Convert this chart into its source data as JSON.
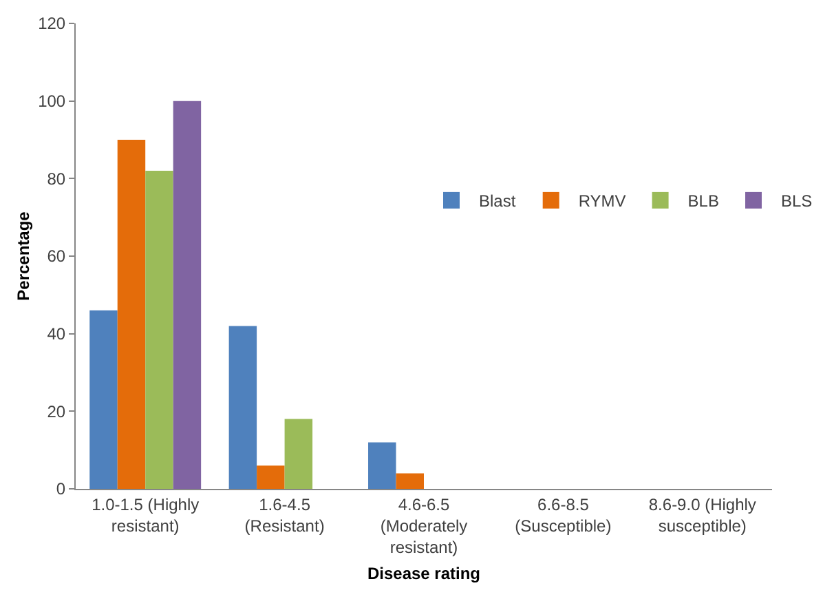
{
  "chart_data": {
    "type": "bar",
    "xlabel": "Disease rating",
    "ylabel": "Percentage",
    "categories": [
      "1.0-1.5 (Highly resistant)",
      "1.6-4.5 (Resistant)",
      "4.6-6.5 (Moderately resistant)",
      "6.6-8.5 (Susceptible)",
      "8.6-9.0 (Highly susceptible)"
    ],
    "series": [
      {
        "name": "Blast",
        "color": "#4f81bd",
        "values": [
          46,
          42,
          12,
          0,
          0
        ]
      },
      {
        "name": "RYMV",
        "color": "#e46c0a",
        "values": [
          90,
          6,
          4,
          0,
          0
        ]
      },
      {
        "name": "BLB",
        "color": "#9bbb59",
        "values": [
          82,
          18,
          0,
          0,
          0
        ]
      },
      {
        "name": "BLS",
        "color": "#8064a2",
        "values": [
          100,
          0,
          0,
          0,
          0
        ]
      }
    ],
    "ylim": [
      0,
      120
    ],
    "yticks": [
      0,
      20,
      40,
      60,
      80,
      100,
      120
    ],
    "grid": false,
    "legend": "right"
  }
}
